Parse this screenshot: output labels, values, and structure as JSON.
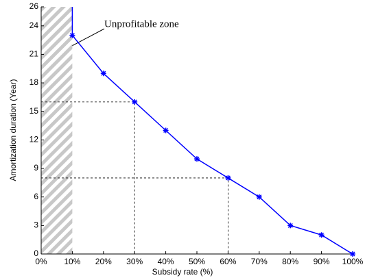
{
  "chart_data": {
    "type": "line",
    "xlabel": "Subsidy rate (%)",
    "ylabel": "Amortization duration (Year)",
    "annotation": "Unprofitable zone",
    "x": [
      10,
      10,
      20,
      30,
      40,
      50,
      60,
      70,
      80,
      90,
      100
    ],
    "series": [
      {
        "color": "#0000ff",
        "values": [
          26,
          23,
          19,
          16,
          13,
          10,
          8,
          6,
          3,
          2,
          0
        ]
      }
    ],
    "xlim": [
      0,
      100
    ],
    "ylim": [
      0,
      26
    ],
    "xticks": [
      {
        "value": 0,
        "label": "0%"
      },
      {
        "value": 10,
        "label": "10%"
      },
      {
        "value": 20,
        "label": "20%"
      },
      {
        "value": 30,
        "label": "30%"
      },
      {
        "value": 40,
        "label": "40%"
      },
      {
        "value": 50,
        "label": "50%"
      },
      {
        "value": 60,
        "label": "60%"
      },
      {
        "value": 70,
        "label": "70%"
      },
      {
        "value": 80,
        "label": "80%"
      },
      {
        "value": 90,
        "label": "90%"
      },
      {
        "value": 100,
        "label": "100%"
      }
    ],
    "yticks": [
      0,
      3,
      6,
      9,
      12,
      15,
      18,
      21,
      24,
      26
    ],
    "shaded_region": [
      0,
      10
    ],
    "guides": [
      {
        "x": 30,
        "y": 16
      },
      {
        "x": 60,
        "y": 8
      }
    ],
    "grid": false
  }
}
